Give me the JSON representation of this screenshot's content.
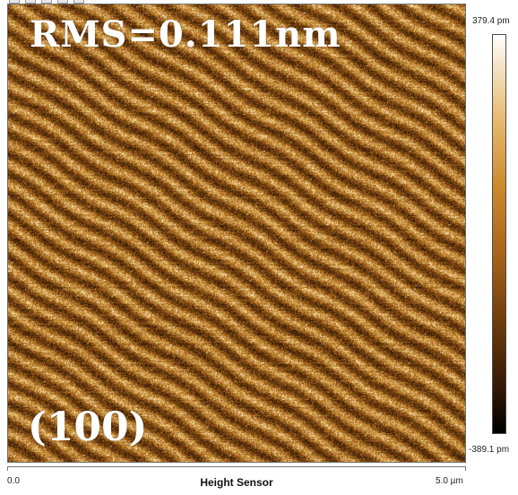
{
  "image": {
    "annotation_rms": "RMS=0.111nm",
    "annotation_face": "(100)",
    "texture": "afm-height-map-diagonal-stripes",
    "palette": {
      "dark": "#2e1604",
      "mid": "#9a5e17",
      "light": "#f2d79c",
      "highlight": "#ffffff"
    }
  },
  "colorbar": {
    "max_label": "379.4 pm",
    "min_label": "-389.1 pm"
  },
  "x_axis": {
    "start_label": "0.0",
    "end_label": "5.0 µm",
    "title": "Height Sensor"
  }
}
